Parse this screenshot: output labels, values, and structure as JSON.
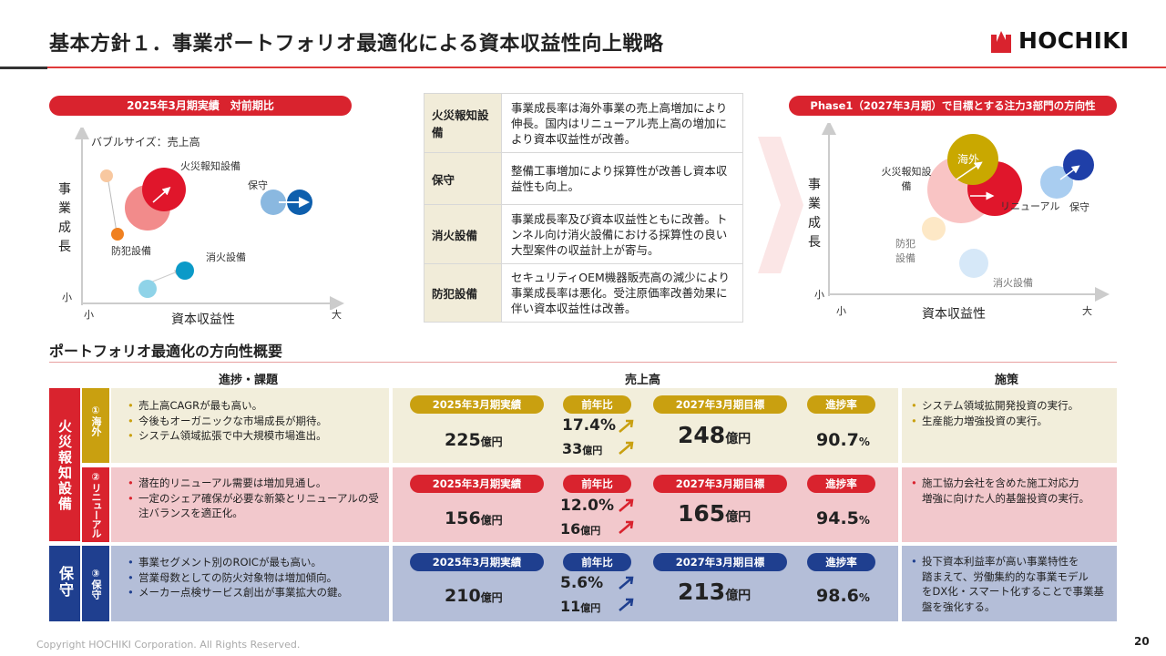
{
  "page": {
    "title": "基本方針１．事業ポートフォリオ最適化による資本収益性向上戦略",
    "logo": "HOCHIKI",
    "copyright": "Copyright HOCHIKI Corporation. All Rights Reserved.",
    "page_number": "20"
  },
  "left_chart": {
    "pill": "2025年3月期実績　対前期比",
    "bubble_note": "バブルサイズ：売上高",
    "yaxis": [
      "事",
      "業",
      "成",
      "長"
    ],
    "ysmall": "小",
    "xsmall": "小",
    "xlarge": "大",
    "xaxis": "資本収益性",
    "labels": {
      "fire": "火災報知設備",
      "maint": "保守",
      "crime": "防犯設備",
      "extin": "消火設備"
    }
  },
  "middle_table": [
    {
      "key": "火災報知設備",
      "desc": "事業成長率は海外事業の売上高増加により伸長。国内はリニューアル売上高の増加により資本収益性が改善。"
    },
    {
      "key": "保守",
      "desc": "整備工事増加により採算性が改善し資本収益性も向上。"
    },
    {
      "key": "消火設備",
      "desc": "事業成長率及び資本収益性ともに改善。トンネル向け消火設備における採算性の良い大型案件の収益計上が寄与。"
    },
    {
      "key": "防犯設備",
      "desc": "セキュリティOEM機器販売高の減少により事業成長率は悪化。受注原価率改善効果に伴い資本収益性は改善。"
    }
  ],
  "right_chart": {
    "pill": "Phase1（2027年3月期）で目標とする注力3部門の方向性",
    "yaxis": [
      "事",
      "業",
      "成",
      "長"
    ],
    "ysmall": "小",
    "xsmall": "小",
    "xlarge": "大",
    "xaxis": "資本収益性",
    "labels": {
      "overseas": "海外",
      "fire": "火災報知設備",
      "renewal": "リニューアル",
      "maint": "保守",
      "crime": "防犯設備",
      "extin": "消火設備"
    }
  },
  "overview": {
    "title": "ポートフォリオ最適化の方向性概要",
    "headers": {
      "progress": "進捗・課題",
      "sales": "売上高",
      "measures": "施策"
    },
    "tags": {
      "actual": "2025年3月期実績",
      "yoy": "前年比",
      "target": "2027年3月期目標",
      "rate": "進捗率"
    },
    "unit": "億円",
    "group_fire": "火災報知設備",
    "group_maint": "保守",
    "rows": [
      {
        "num": "①",
        "name": "海外",
        "bullets": [
          "売上高CAGRが最も高い。",
          "今後もオーガニックな市場成長が期待。",
          "システム領域拡張で中大規模市場進出。"
        ],
        "actual": "225",
        "yoy_pct": "17.4%",
        "yoy_amt": "33",
        "target": "248",
        "rate": "90.7",
        "measures": [
          "システム領域拡開発投資の実行。",
          "生産能力増強投資の実行。"
        ]
      },
      {
        "num": "②",
        "name": "リニューアル",
        "bullets": [
          "潜在的リニューアル需要は増加見通し。",
          "一定のシェア確保が必要な新築とリニューアルの受",
          "注バランスを適正化。"
        ],
        "actual": "156",
        "yoy_pct": "12.0%",
        "yoy_amt": "16",
        "target": "165",
        "rate": "94.5",
        "measures": [
          "施工協力会社を含めた施工対応力",
          "増強に向けた人的基盤投資の実行。"
        ]
      },
      {
        "num": "③",
        "name": "保守",
        "bullets": [
          "事業セグメント別のROICが最も高い。",
          "営業母数としての防火対象物は増加傾向。",
          "メーカー点検サービス創出が事業拡大の鍵。"
        ],
        "actual": "210",
        "yoy_pct": "5.6%",
        "yoy_amt": "11",
        "target": "213",
        "rate": "98.6",
        "measures": [
          "投下資本利益率が高い事業特性を",
          "踏まえて、労働集約的な事業モデル",
          "をDX化・スマート化することで事業基",
          "盤を強化する。"
        ]
      }
    ],
    "pct_suffix": "%"
  },
  "colors": {
    "red": "#d9232e",
    "gold": "#c9a010",
    "navy": "#1f3f8f",
    "row1": "#f2eedb",
    "row2": "#f2c8cc",
    "row3": "#b4bed8"
  }
}
